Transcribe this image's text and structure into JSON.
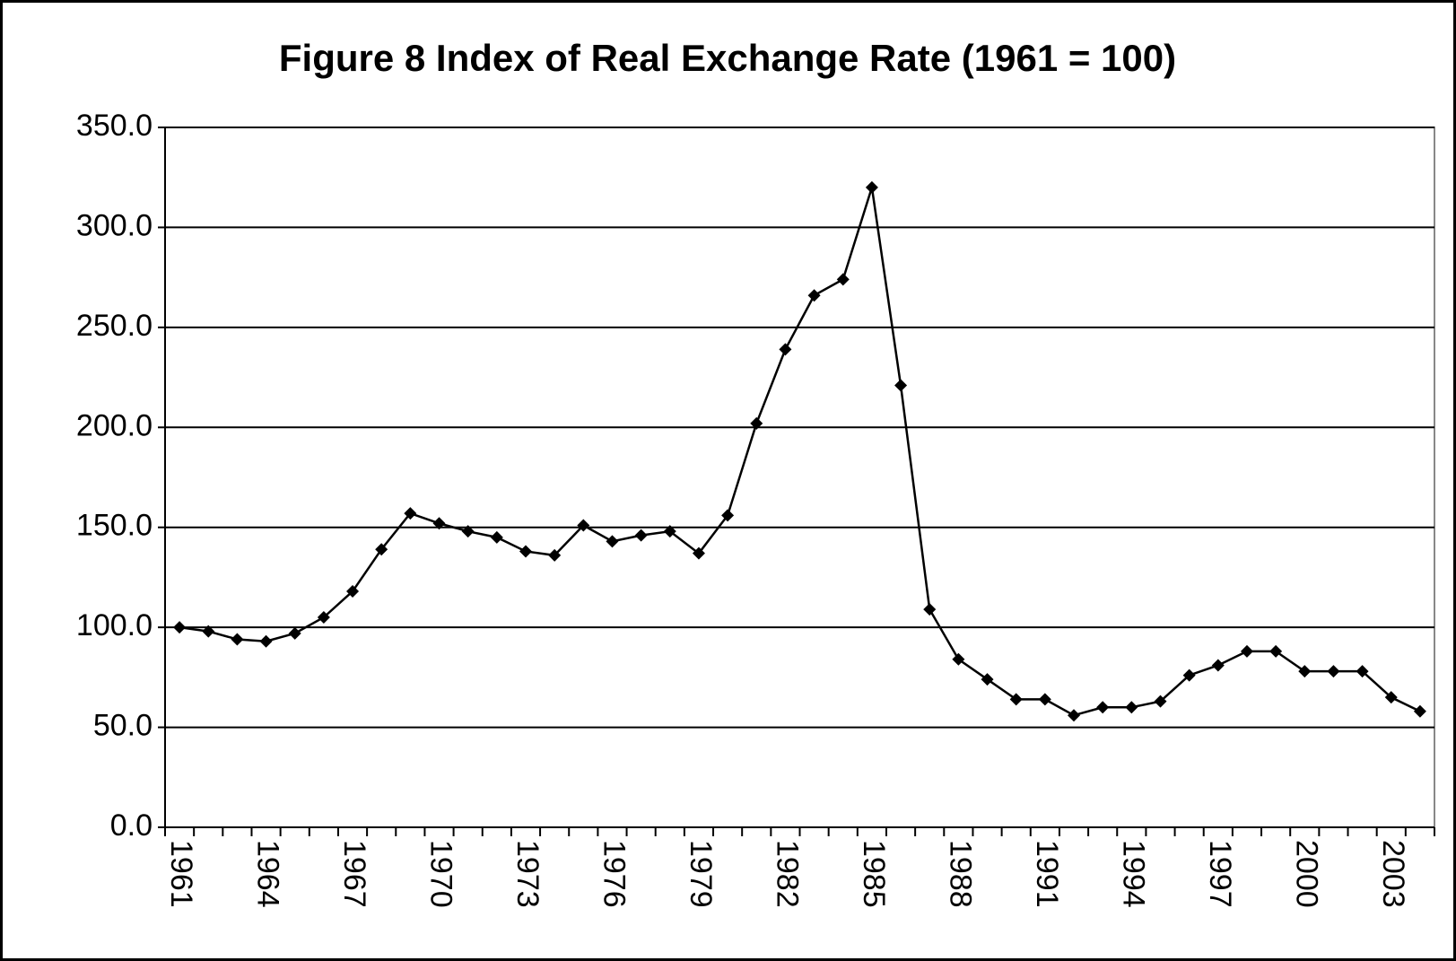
{
  "chart_data": {
    "type": "line",
    "title": "Figure 8 Index of Real Exchange Rate (1961 = 100)",
    "categories": [
      "1961",
      null,
      null,
      "1964",
      null,
      null,
      "1967",
      null,
      null,
      "1970",
      null,
      null,
      "1973",
      null,
      null,
      "1976",
      null,
      null,
      "1979",
      null,
      null,
      "1982",
      null,
      null,
      "1985",
      null,
      null,
      "1988",
      null,
      null,
      "1991",
      null,
      null,
      "1994",
      null,
      null,
      "1997",
      null,
      null,
      "2000",
      null,
      null,
      "2003",
      null
    ],
    "series": [
      {
        "name": "Index of Real Exchange Rate",
        "color": "#000000",
        "values": [
          100,
          98,
          94,
          93,
          97,
          105,
          118,
          139,
          157,
          152,
          148,
          145,
          138,
          136,
          151,
          143,
          146,
          148,
          137,
          156,
          202,
          239,
          266,
          274,
          320,
          221,
          109,
          84,
          74,
          64,
          64,
          56,
          60,
          60,
          63,
          76,
          81,
          88,
          88,
          78,
          78,
          78,
          65,
          58
        ]
      }
    ],
    "ylim": [
      0,
      350
    ],
    "yticks": [
      {
        "value": 0,
        "label": "0.0"
      },
      {
        "value": 50,
        "label": "50.0"
      },
      {
        "value": 100,
        "label": "100.0"
      },
      {
        "value": 150,
        "label": "150.0"
      },
      {
        "value": 200,
        "label": "200.0"
      },
      {
        "value": 250,
        "label": "250.0"
      },
      {
        "value": 300,
        "label": "300.0"
      },
      {
        "value": 350,
        "label": "350.0"
      }
    ],
    "grid": true
  }
}
